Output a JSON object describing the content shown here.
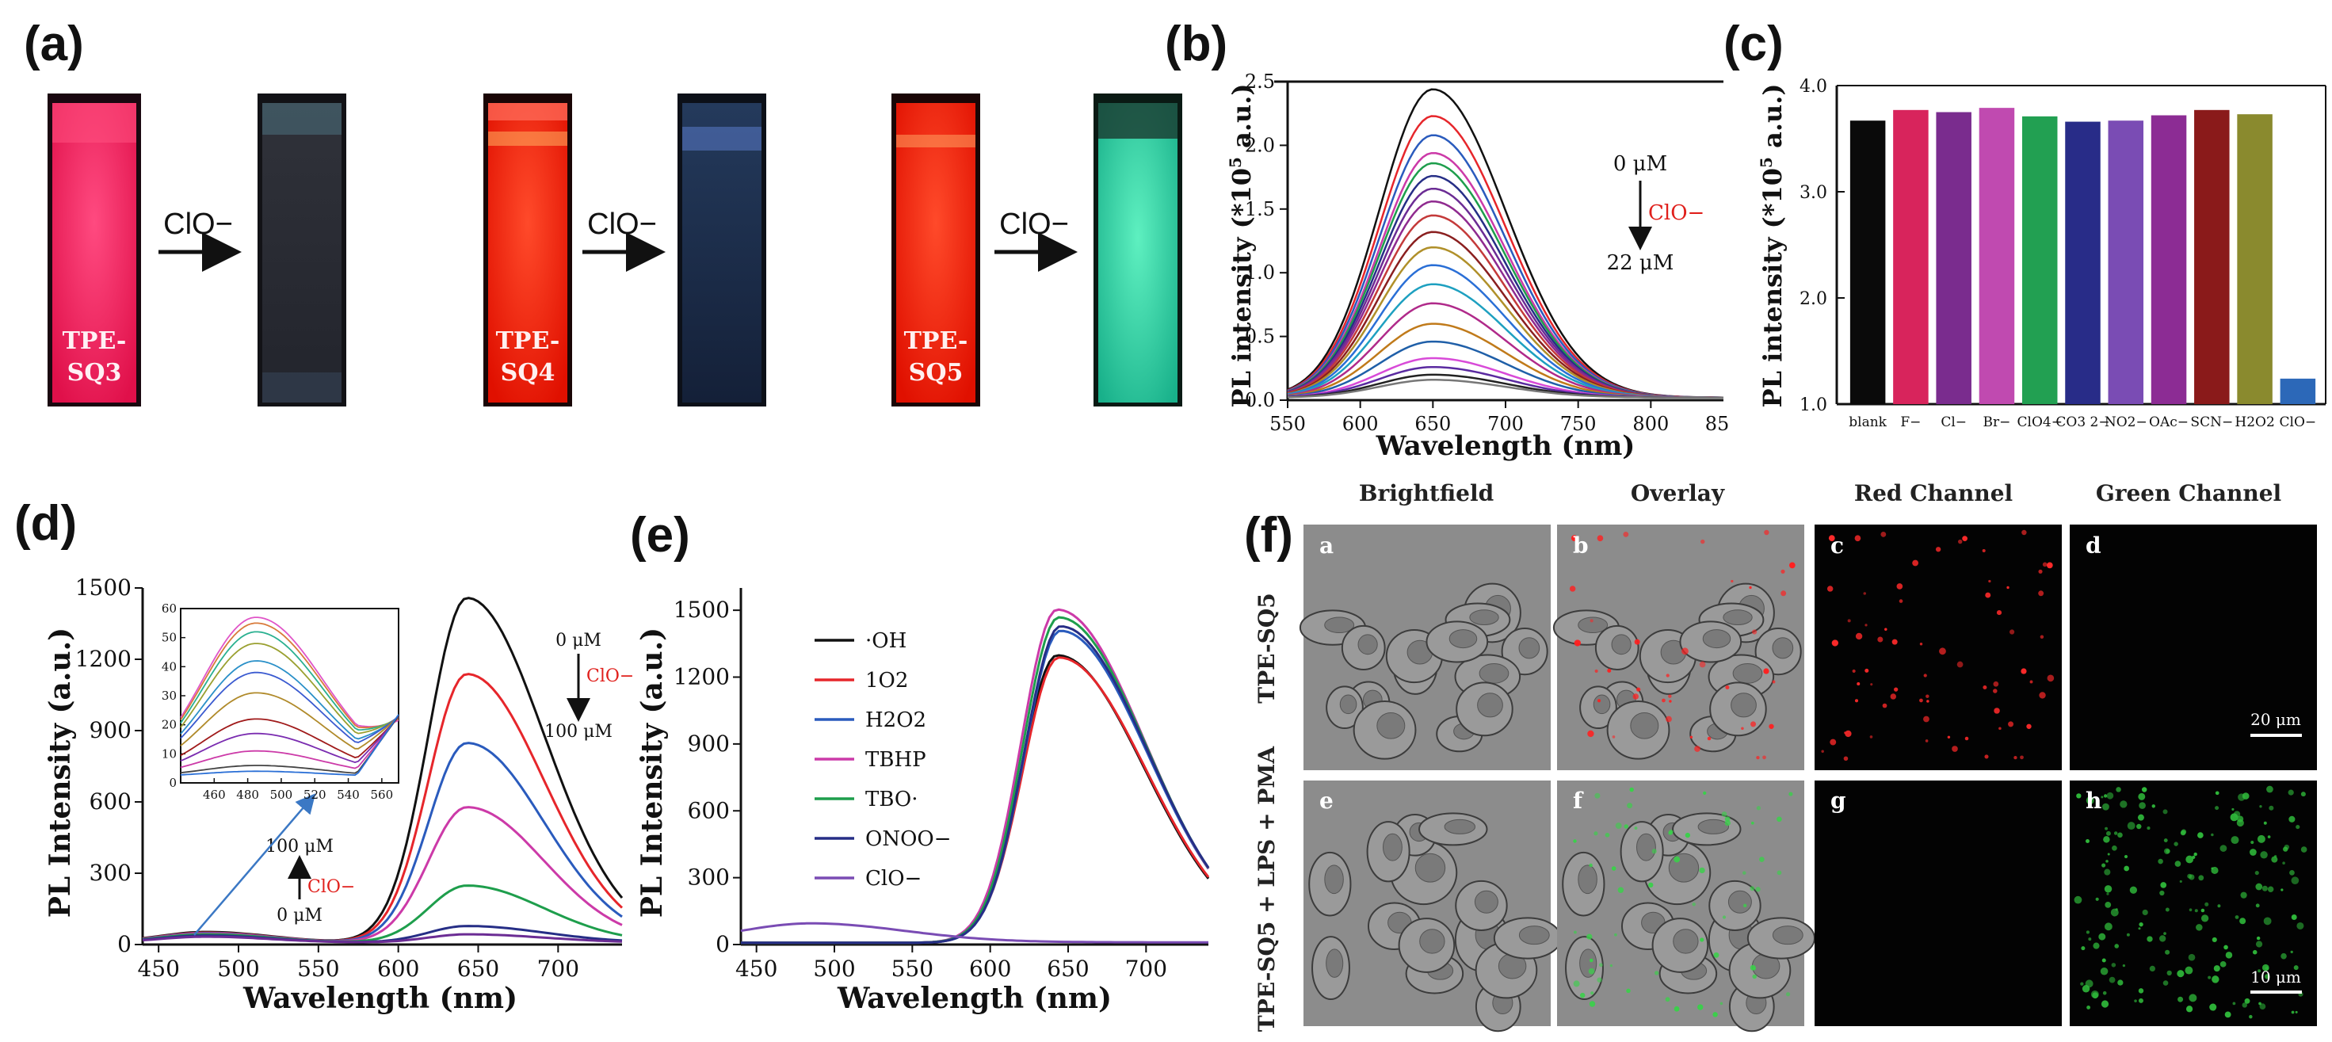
{
  "panel_labels": {
    "a": "(a)",
    "b": "(b)",
    "c": "(c)",
    "d": "(d)",
    "e": "(e)",
    "f": "(f)"
  },
  "colors": {
    "pink_solution": "#ff1a5a",
    "red_solution": "#ff2010",
    "cyan_solution": "#2ed8a4",
    "dark_blue_solution": "#1c2c48",
    "label_red": "#e0201c"
  },
  "panel_a": {
    "cuvettes": [
      {
        "label_line1": "TPE-",
        "label_line2": "SQ3",
        "before_color": "#ff1a5a",
        "after_color": "#2a2c34"
      },
      {
        "label_line1": "TPE-",
        "label_line2": "SQ4",
        "before_color": "#ff2010",
        "after_color": "#1c2c48"
      },
      {
        "label_line1": "TPE-",
        "label_line2": "SQ5",
        "before_color": "#ff2010",
        "after_color": "#2ed8a4"
      }
    ],
    "arrow_label": "ClO−"
  },
  "chart_data": [
    {
      "id": "b",
      "type": "line",
      "xlabel": "Wavelength (nm)",
      "ylabel_prefix": "PL intensity (*10",
      "ylabel_sup": "5",
      "ylabel_suffix": " a.u.)",
      "xlim": [
        550,
        850
      ],
      "ylim": [
        0,
        2.5
      ],
      "xticks": [
        550,
        600,
        650,
        700,
        750,
        800
      ],
      "xtick_extra": "85",
      "yticks": [
        "0.0",
        "0.5",
        "1.0",
        "1.5",
        "2.0",
        "2.5"
      ],
      "peak_nm": 650,
      "sigma_left": 37,
      "sigma_right": 50,
      "series_peaks": [
        2.42,
        2.21,
        2.06,
        1.92,
        1.84,
        1.74,
        1.64,
        1.54,
        1.43,
        1.3,
        1.18,
        1.04,
        0.89,
        0.74,
        0.58,
        0.44,
        0.31,
        0.24,
        0.18,
        0.14
      ],
      "series_colors": [
        "#111111",
        "#e6262b",
        "#2a5bbd",
        "#cc3aa8",
        "#1e9e4c",
        "#262e86",
        "#6b2c94",
        "#8f2a8f",
        "#c43a3a",
        "#8a1f1f",
        "#b0902a",
        "#2a6fd6",
        "#1ea0c0",
        "#b02a8a",
        "#c07a1a",
        "#1f5fa8",
        "#d84ad8",
        "#5a2aa0",
        "#222222",
        "#777777"
      ],
      "annotation_top": "0 μM",
      "annotation_ion": "ClO−",
      "annotation_bottom": "22 μM"
    },
    {
      "id": "c",
      "type": "bar",
      "ylabel_prefix": "PL intensity (*10",
      "ylabel_sup": "5",
      "ylabel_suffix": " a.u.)",
      "ylim": [
        1.0,
        4.0
      ],
      "yticks": [
        "1.0",
        "2.0",
        "3.0",
        "4.0"
      ],
      "categories": [
        "blank",
        "F−",
        "Cl−",
        "Br−",
        "ClO4−",
        "CO3 2−",
        "NO2−",
        "OAc−",
        "SCN−",
        "H2O2",
        "ClO−"
      ],
      "values": [
        3.67,
        3.77,
        3.75,
        3.79,
        3.71,
        3.66,
        3.67,
        3.72,
        3.77,
        3.73,
        1.24
      ],
      "bar_colors": [
        "#0a0a0a",
        "#d8245c",
        "#7a2c8e",
        "#c04ab0",
        "#22a052",
        "#282c88",
        "#7a4cb4",
        "#8c2c94",
        "#8a1a1a",
        "#8a8a2e",
        "#2c68b8"
      ]
    },
    {
      "id": "d",
      "type": "line",
      "xlabel": "Wavelength (nm)",
      "ylabel": "PL Intensity (a.u.)",
      "xlim": [
        440,
        740
      ],
      "ylim": [
        0,
        1500
      ],
      "xticks": [
        450,
        500,
        550,
        600,
        650,
        700
      ],
      "yticks": [
        0,
        300,
        600,
        900,
        1200,
        1500
      ],
      "series_peaks": [
        1450,
        1130,
        840,
        570,
        240,
        70,
        35
      ],
      "series_colors": [
        "#111111",
        "#e6262b",
        "#2a5bbd",
        "#cc3aa8",
        "#1e9e4c",
        "#262e86",
        "#6b2c94"
      ],
      "annotation_top": "0 μM",
      "annotation_ion": "ClO−",
      "annotation_bottom": "100 μM",
      "annotation2_top": "100 μM",
      "annotation2_ion": "ClO−",
      "annotation2_bottom": "0 μM",
      "inset": {
        "xlim": [
          440,
          570
        ],
        "ylim": [
          0,
          60
        ],
        "xticks": [
          460,
          480,
          500,
          520,
          540,
          560
        ],
        "yticks": [
          0,
          10,
          20,
          30,
          40,
          50,
          60
        ],
        "series_peaks": [
          55,
          53,
          50,
          46,
          40,
          36,
          29,
          20,
          15,
          9,
          4,
          2
        ],
        "series_colors": [
          "#e055c8",
          "#d87a3a",
          "#2ab090",
          "#9aa030",
          "#2a90c8",
          "#3a5ad0",
          "#b08a2a",
          "#a01a1a",
          "#7a2cb0",
          "#cc3aa8",
          "#444444",
          "#2a6fd6"
        ]
      }
    },
    {
      "id": "e",
      "type": "line",
      "xlabel": "Wavelength (nm)",
      "ylabel": "PL Intensity (a.u.)",
      "xlim": [
        440,
        740
      ],
      "ylim": [
        0,
        1600
      ],
      "xticks": [
        450,
        500,
        550,
        600,
        650,
        700
      ],
      "yticks": [
        0,
        300,
        600,
        900,
        1200,
        1500
      ],
      "series": [
        {
          "name": "·OH",
          "peak": 1290,
          "color": "#111111"
        },
        {
          "name": "1O2",
          "peak": 1280,
          "color": "#e6262b"
        },
        {
          "name": "H2O2",
          "peak": 1400,
          "color": "#2a5bbd"
        },
        {
          "name": "TBHP",
          "peak": 1495,
          "color": "#cc3aa8"
        },
        {
          "name": "TBO·",
          "peak": 1460,
          "color": "#1e9e4c"
        },
        {
          "name": "ONOO−",
          "peak": 1420,
          "color": "#262e86"
        },
        {
          "name": "ClO−",
          "peak": 85,
          "color": "#7a4cb4"
        }
      ]
    }
  ],
  "panel_f": {
    "columns": [
      "Brightfield",
      "Overlay",
      "Red Channel",
      "Green Channel"
    ],
    "rows": [
      "TPE-SQ5",
      "TPE-SQ5 + LPS + PMA"
    ],
    "sublabels": [
      "a",
      "b",
      "c",
      "d",
      "e",
      "f",
      "g",
      "h"
    ],
    "scale_bar_1": "20 μm",
    "scale_bar_2": "10 μm"
  }
}
